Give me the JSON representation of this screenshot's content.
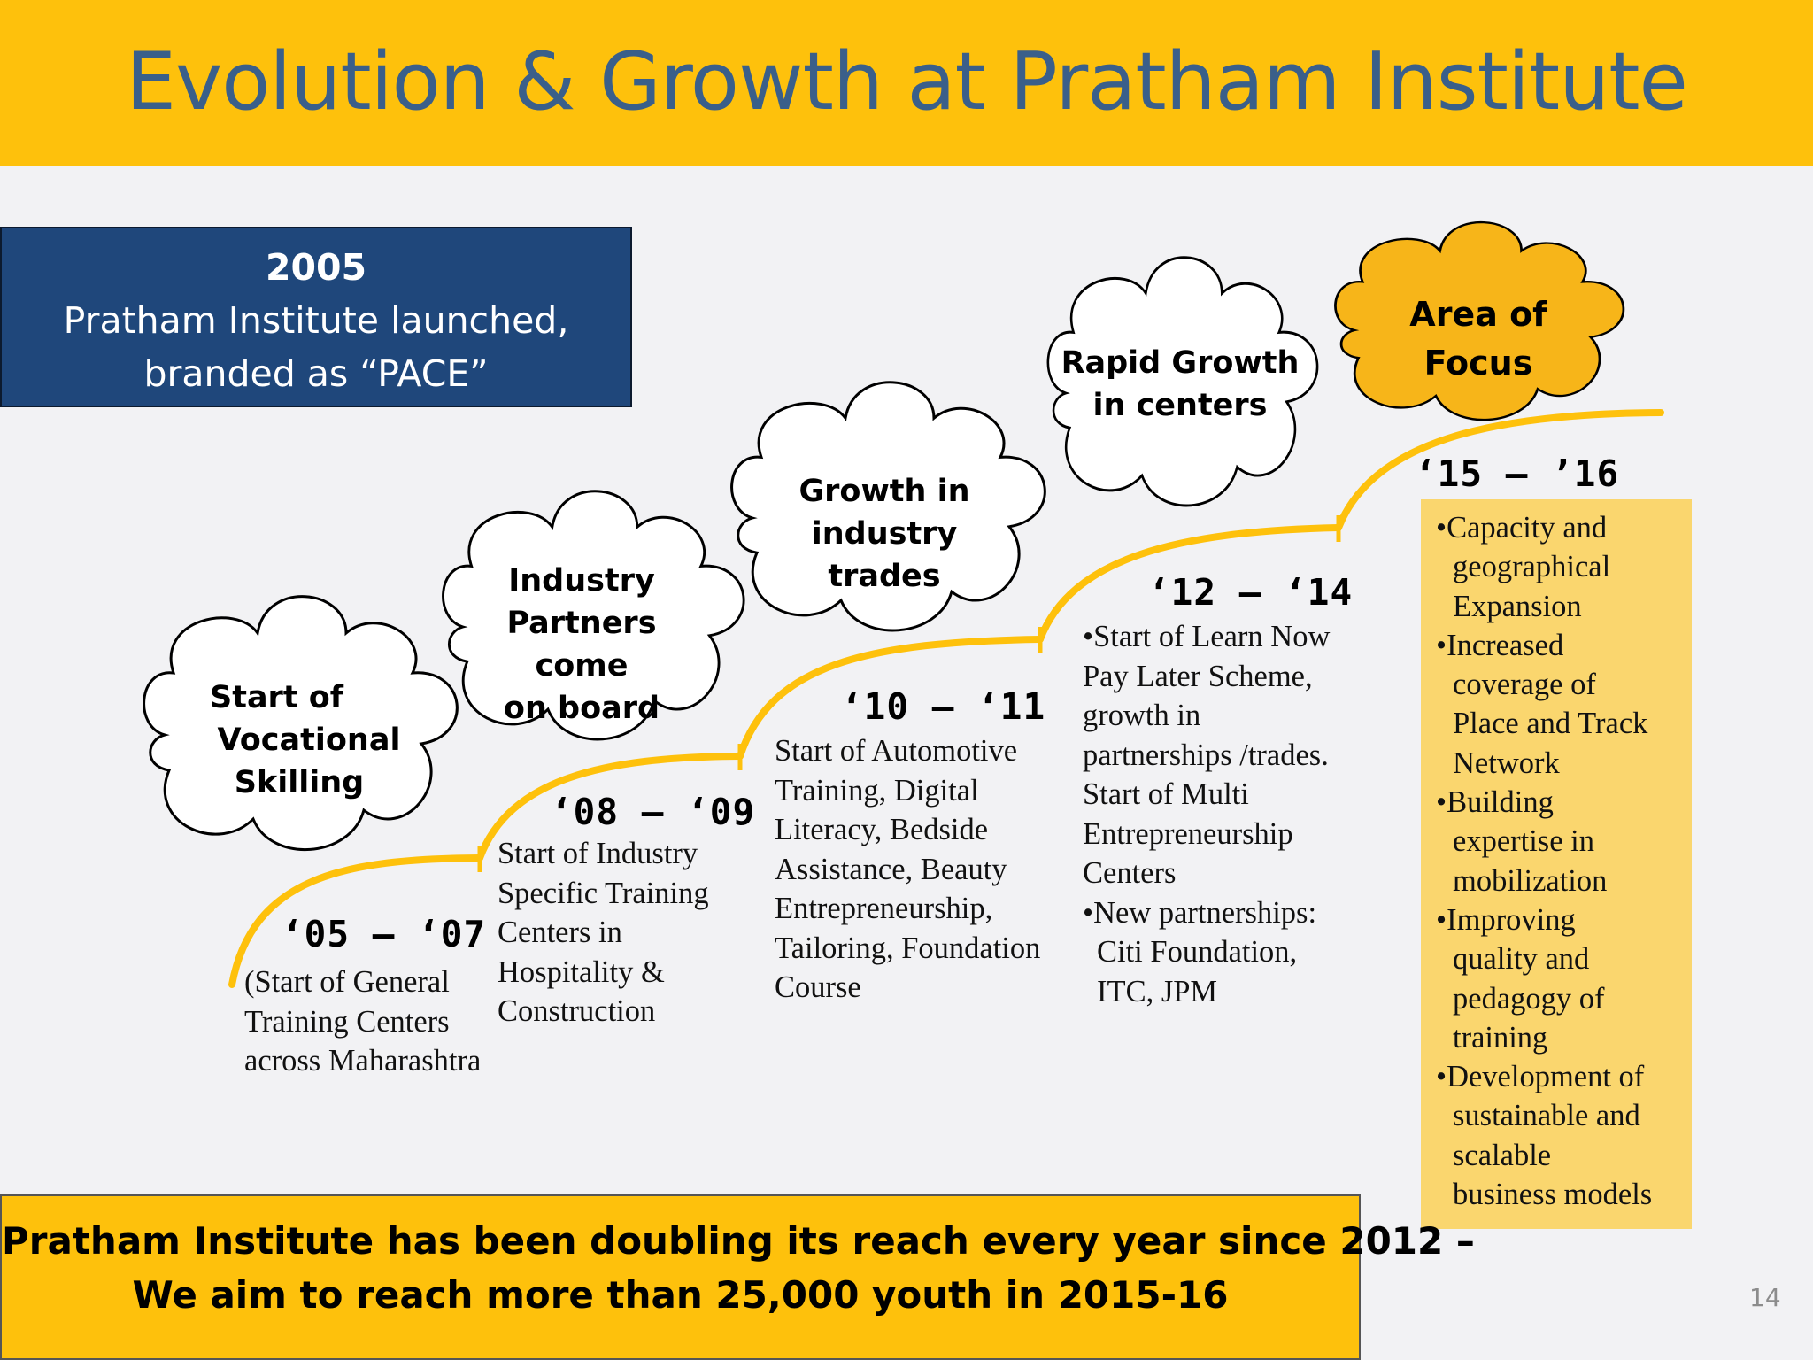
{
  "title": "Evolution & Growth at Pratham Institute",
  "launch": {
    "year": "2005",
    "line1": "Pratham Institute launched,",
    "line2": "branded as “PACE”"
  },
  "stages": [
    {
      "cloud": [
        "Start of",
        "Vocational",
        "Skilling"
      ],
      "period": "‘05 – ‘07",
      "lines": [
        "(Start of General",
        "Training Centers",
        "across Maharashtra"
      ]
    },
    {
      "cloud": [
        "Industry",
        "Partners come",
        "on board"
      ],
      "period": "‘08 – ‘09",
      "lines": [
        "Start of Industry",
        "Specific Training",
        "Centers in",
        "Hospitality &",
        "Construction"
      ]
    },
    {
      "cloud": [
        "Growth in",
        "industry trades"
      ],
      "period": "‘10 – ‘11",
      "lines": [
        "Start of Automotive",
        "Training, Digital",
        "Literacy, Bedside",
        "Assistance, Beauty",
        "Entrepreneurship,",
        "Tailoring, Foundation",
        "Course"
      ]
    },
    {
      "cloud": [
        "Rapid Growth",
        "in centers"
      ],
      "period": "‘12 – ‘14",
      "lines": [
        "•Start of Learn Now",
        "Pay Later Scheme,",
        "growth in",
        "partnerships /trades.",
        "Start of Multi",
        "Entrepreneurship",
        "Centers",
        "•New partnerships:",
        "Citi Foundation,",
        "ITC, JPM"
      ]
    },
    {
      "cloud": [
        "Area of",
        "Focus"
      ],
      "period": "‘15 – ’16",
      "lines": [
        "•Capacity and",
        "geographical",
        "Expansion",
        "•Increased",
        "coverage of",
        "Place and Track",
        "Network",
        "•Building",
        "expertise in",
        "mobilization",
        "•Improving",
        "quality and",
        "pedagogy of",
        "training",
        "•Development of",
        "sustainable and",
        "scalable",
        "business models"
      ]
    }
  ],
  "bottom": {
    "line1": "Pratham Institute has been doubling its reach every year since 2012 –",
    "line2": "We aim to reach more than 25,000 youth in 2015-16"
  },
  "page_number": "14",
  "colors": {
    "banner": "#fec10c",
    "title_text": "#3a5f8a",
    "launch_box": "#1f477b",
    "focus_cloud": "#f7b519",
    "focus_box": "#fad66e",
    "timeline": "#fec10c"
  }
}
